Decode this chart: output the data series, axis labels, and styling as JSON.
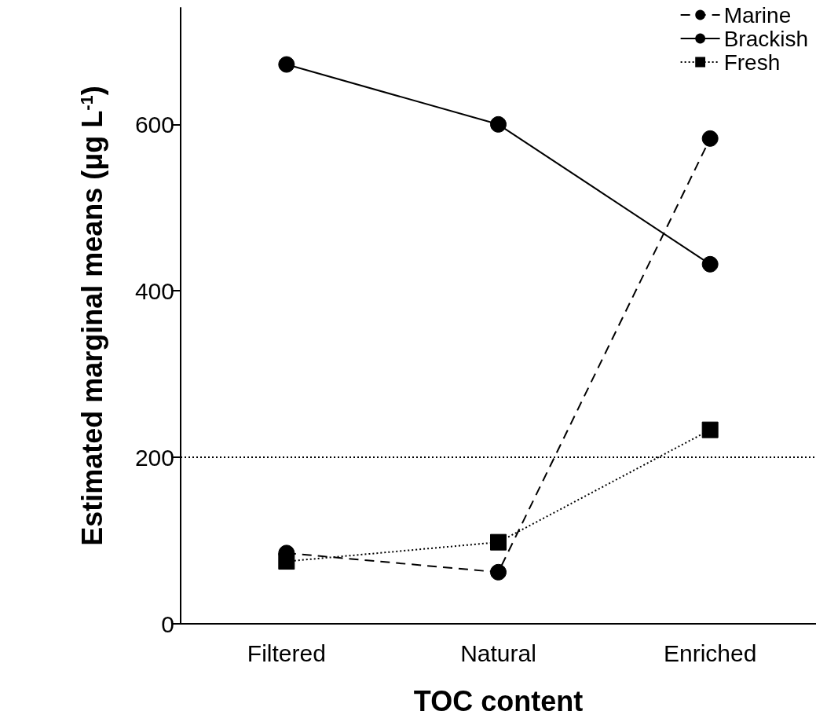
{
  "chart_data": {
    "type": "line",
    "xlabel": "TOC content",
    "ylabel": "Estimated marginal means (μg L$^{-1}$)",
    "categories": [
      "Filtered",
      "Natural",
      "Enriched"
    ],
    "series": [
      {
        "name": "Marine",
        "color": "#000000",
        "values": [
          85,
          62,
          583
        ],
        "line_style": "dashed",
        "marker": "circle"
      },
      {
        "name": "Brackish",
        "color": "#000000",
        "values": [
          672,
          600,
          432
        ],
        "line_style": "solid",
        "marker": "circle"
      },
      {
        "name": "Fresh",
        "color": "#000000",
        "values": [
          75,
          98,
          233
        ],
        "line_style": "dotted",
        "marker": "square"
      }
    ],
    "ylim": [
      0,
      740
    ],
    "yticks": [
      0,
      200,
      400,
      600
    ],
    "grid": false,
    "legend": "top right",
    "ref_lines": [
      {
        "axis": "y",
        "value": 200,
        "line_style": "dotted",
        "color": "#000000"
      }
    ]
  }
}
